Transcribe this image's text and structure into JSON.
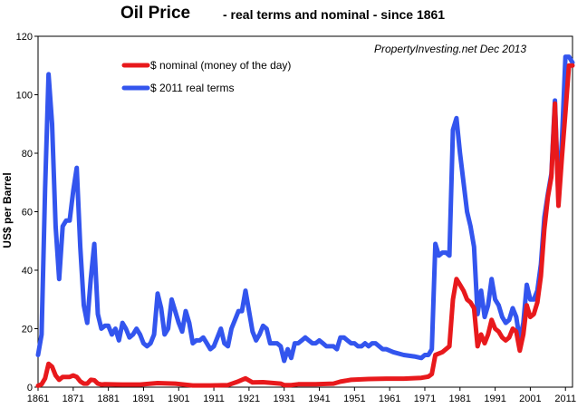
{
  "chart_data": {
    "type": "line",
    "title": "Oil Price",
    "subtitle": "- real terms and nominal  - since 1861",
    "xlabel": "",
    "ylabel": "US$ per Barrel",
    "annotation": "PropertyInvesting.net  Dec 2013",
    "xlim": [
      1861,
      2013
    ],
    "ylim": [
      0,
      120
    ],
    "x_ticks": [
      "1861",
      "1871",
      "1881",
      "1891",
      "1901",
      "1911",
      "1921",
      "1931",
      "1941",
      "1951",
      "1961",
      "1971",
      "1981",
      "1991",
      "2001",
      "2011"
    ],
    "y_ticks": [
      "0",
      "20",
      "40",
      "60",
      "80",
      "100",
      "120"
    ],
    "legend_position": "top-left",
    "series": [
      {
        "name": "$ nominal (money of the day)",
        "color": "#e8191c",
        "points": [
          [
            1861,
            0.5
          ],
          [
            1862,
            1
          ],
          [
            1863,
            3
          ],
          [
            1864,
            8
          ],
          [
            1865,
            7
          ],
          [
            1866,
            4
          ],
          [
            1867,
            2.5
          ],
          [
            1868,
            3.5
          ],
          [
            1869,
            3.5
          ],
          [
            1870,
            3.5
          ],
          [
            1871,
            4
          ],
          [
            1872,
            3.5
          ],
          [
            1873,
            2
          ],
          [
            1874,
            1.2
          ],
          [
            1875,
            1.2
          ],
          [
            1876,
            2.5
          ],
          [
            1877,
            2.4
          ],
          [
            1878,
            1.2
          ],
          [
            1879,
            0.9
          ],
          [
            1880,
            1
          ],
          [
            1885,
            0.9
          ],
          [
            1890,
            0.9
          ],
          [
            1895,
            1.4
          ],
          [
            1900,
            1.2
          ],
          [
            1905,
            0.6
          ],
          [
            1910,
            0.6
          ],
          [
            1915,
            0.7
          ],
          [
            1918,
            2
          ],
          [
            1920,
            3
          ],
          [
            1922,
            1.6
          ],
          [
            1925,
            1.7
          ],
          [
            1930,
            1.2
          ],
          [
            1931,
            0.7
          ],
          [
            1933,
            0.7
          ],
          [
            1935,
            1
          ],
          [
            1940,
            1
          ],
          [
            1945,
            1.2
          ],
          [
            1947,
            1.9
          ],
          [
            1950,
            2.5
          ],
          [
            1955,
            2.8
          ],
          [
            1960,
            2.9
          ],
          [
            1965,
            2.9
          ],
          [
            1970,
            3.2
          ],
          [
            1972,
            3.6
          ],
          [
            1973,
            4.5
          ],
          [
            1974,
            11
          ],
          [
            1976,
            12
          ],
          [
            1978,
            14
          ],
          [
            1979,
            30
          ],
          [
            1980,
            37
          ],
          [
            1981,
            35
          ],
          [
            1982,
            33
          ],
          [
            1983,
            30
          ],
          [
            1984,
            29
          ],
          [
            1985,
            27
          ],
          [
            1986,
            14
          ],
          [
            1987,
            18
          ],
          [
            1988,
            15
          ],
          [
            1989,
            18
          ],
          [
            1990,
            23
          ],
          [
            1991,
            20
          ],
          [
            1992,
            19
          ],
          [
            1993,
            17
          ],
          [
            1994,
            16
          ],
          [
            1995,
            17
          ],
          [
            1996,
            20
          ],
          [
            1997,
            19
          ],
          [
            1998,
            12.5
          ],
          [
            1999,
            18
          ],
          [
            2000,
            28
          ],
          [
            2001,
            24
          ],
          [
            2002,
            25
          ],
          [
            2003,
            29
          ],
          [
            2004,
            38
          ],
          [
            2005,
            54
          ],
          [
            2006,
            65
          ],
          [
            2007,
            72
          ],
          [
            2008,
            97
          ],
          [
            2009,
            62
          ],
          [
            2010,
            79
          ],
          [
            2011,
            94
          ],
          [
            2012,
            110
          ],
          [
            2013,
            110
          ]
        ]
      },
      {
        "name": "$ 2011 real terms",
        "color": "#3355ee",
        "points": [
          [
            1861,
            11
          ],
          [
            1862,
            18
          ],
          [
            1863,
            68
          ],
          [
            1864,
            107
          ],
          [
            1865,
            90
          ],
          [
            1866,
            55
          ],
          [
            1867,
            37
          ],
          [
            1868,
            55
          ],
          [
            1869,
            57
          ],
          [
            1870,
            57
          ],
          [
            1871,
            67
          ],
          [
            1872,
            75
          ],
          [
            1873,
            48
          ],
          [
            1874,
            28
          ],
          [
            1875,
            22
          ],
          [
            1876,
            37
          ],
          [
            1877,
            49
          ],
          [
            1878,
            25
          ],
          [
            1879,
            20
          ],
          [
            1880,
            21
          ],
          [
            1881,
            21
          ],
          [
            1882,
            18
          ],
          [
            1883,
            20
          ],
          [
            1884,
            16
          ],
          [
            1885,
            22
          ],
          [
            1886,
            20
          ],
          [
            1887,
            17
          ],
          [
            1888,
            18
          ],
          [
            1889,
            20
          ],
          [
            1890,
            18
          ],
          [
            1891,
            15
          ],
          [
            1892,
            14
          ],
          [
            1893,
            15
          ],
          [
            1894,
            18
          ],
          [
            1895,
            32
          ],
          [
            1896,
            27
          ],
          [
            1897,
            18
          ],
          [
            1898,
            20
          ],
          [
            1899,
            30
          ],
          [
            1900,
            26
          ],
          [
            1901,
            22
          ],
          [
            1902,
            19
          ],
          [
            1903,
            26
          ],
          [
            1904,
            22
          ],
          [
            1905,
            15
          ],
          [
            1906,
            16
          ],
          [
            1907,
            16
          ],
          [
            1908,
            17
          ],
          [
            1909,
            15
          ],
          [
            1910,
            13
          ],
          [
            1911,
            14
          ],
          [
            1912,
            17
          ],
          [
            1913,
            20
          ],
          [
            1914,
            15
          ],
          [
            1915,
            14
          ],
          [
            1916,
            20
          ],
          [
            1917,
            23
          ],
          [
            1918,
            26
          ],
          [
            1919,
            26
          ],
          [
            1920,
            33
          ],
          [
            1921,
            26
          ],
          [
            1922,
            19
          ],
          [
            1923,
            16
          ],
          [
            1924,
            18
          ],
          [
            1925,
            21
          ],
          [
            1926,
            20
          ],
          [
            1927,
            15
          ],
          [
            1928,
            15
          ],
          [
            1929,
            15
          ],
          [
            1930,
            14
          ],
          [
            1931,
            9
          ],
          [
            1932,
            13
          ],
          [
            1933,
            10
          ],
          [
            1934,
            15
          ],
          [
            1935,
            15
          ],
          [
            1936,
            16
          ],
          [
            1937,
            17
          ],
          [
            1938,
            16
          ],
          [
            1939,
            15
          ],
          [
            1940,
            15
          ],
          [
            1941,
            16
          ],
          [
            1942,
            15
          ],
          [
            1943,
            14
          ],
          [
            1944,
            14
          ],
          [
            1945,
            14
          ],
          [
            1946,
            13
          ],
          [
            1947,
            17
          ],
          [
            1948,
            17
          ],
          [
            1949,
            16
          ],
          [
            1950,
            15
          ],
          [
            1951,
            15
          ],
          [
            1952,
            14
          ],
          [
            1953,
            14
          ],
          [
            1954,
            15
          ],
          [
            1955,
            14
          ],
          [
            1956,
            15
          ],
          [
            1957,
            15
          ],
          [
            1958,
            14
          ],
          [
            1959,
            13
          ],
          [
            1960,
            13
          ],
          [
            1962,
            12
          ],
          [
            1965,
            11
          ],
          [
            1968,
            10.5
          ],
          [
            1970,
            10
          ],
          [
            1971,
            11
          ],
          [
            1972,
            11
          ],
          [
            1973,
            13
          ],
          [
            1974,
            49
          ],
          [
            1975,
            45
          ],
          [
            1976,
            46
          ],
          [
            1977,
            46
          ],
          [
            1978,
            45
          ],
          [
            1979,
            88
          ],
          [
            1980,
            92
          ],
          [
            1981,
            80
          ],
          [
            1982,
            70
          ],
          [
            1983,
            60
          ],
          [
            1984,
            55
          ],
          [
            1985,
            48
          ],
          [
            1986,
            25
          ],
          [
            1987,
            33
          ],
          [
            1988,
            24
          ],
          [
            1989,
            28
          ],
          [
            1990,
            37
          ],
          [
            1991,
            30
          ],
          [
            1992,
            28
          ],
          [
            1993,
            24
          ],
          [
            1994,
            22
          ],
          [
            1995,
            23
          ],
          [
            1996,
            27
          ],
          [
            1997,
            24
          ],
          [
            1998,
            16
          ],
          [
            1999,
            22
          ],
          [
            2000,
            35
          ],
          [
            2001,
            30
          ],
          [
            2002,
            30
          ],
          [
            2003,
            33
          ],
          [
            2004,
            42
          ],
          [
            2005,
            58
          ],
          [
            2006,
            66
          ],
          [
            2007,
            73
          ],
          [
            2008,
            98
          ],
          [
            2009,
            64
          ],
          [
            2010,
            85
          ],
          [
            2011,
            113
          ],
          [
            2012,
            113
          ],
          [
            2013,
            111
          ]
        ]
      }
    ]
  }
}
